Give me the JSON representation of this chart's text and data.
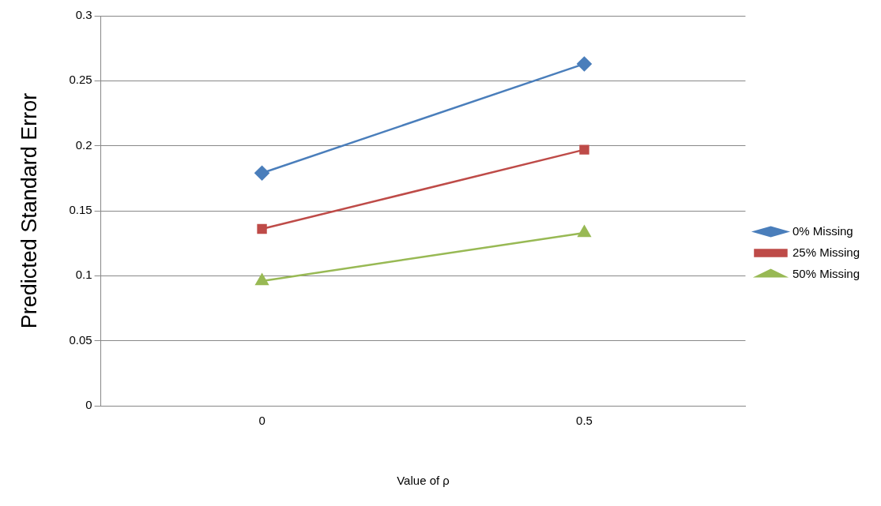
{
  "chart_data": {
    "type": "line",
    "xlabel": "Value of ρ",
    "ylabel": "Predicted Standard Error",
    "categories": [
      "0",
      "0.5"
    ],
    "series": [
      {
        "name": "0% Missing",
        "color": "#4a7ebb",
        "values": [
          0.179,
          0.263
        ],
        "marker": "diamond"
      },
      {
        "name": "25% Missing",
        "color": "#be4b48",
        "values": [
          0.136,
          0.197
        ],
        "marker": "square"
      },
      {
        "name": "50% Missing",
        "color": "#98b954",
        "values": [
          0.096,
          0.133
        ],
        "marker": "triangle"
      }
    ],
    "ylim": [
      0,
      0.3
    ],
    "yticks": [
      0,
      0.05,
      0.1,
      0.15,
      0.2,
      0.25,
      0.3
    ],
    "grid": "y",
    "legend": "right",
    "line_style": "solid"
  }
}
